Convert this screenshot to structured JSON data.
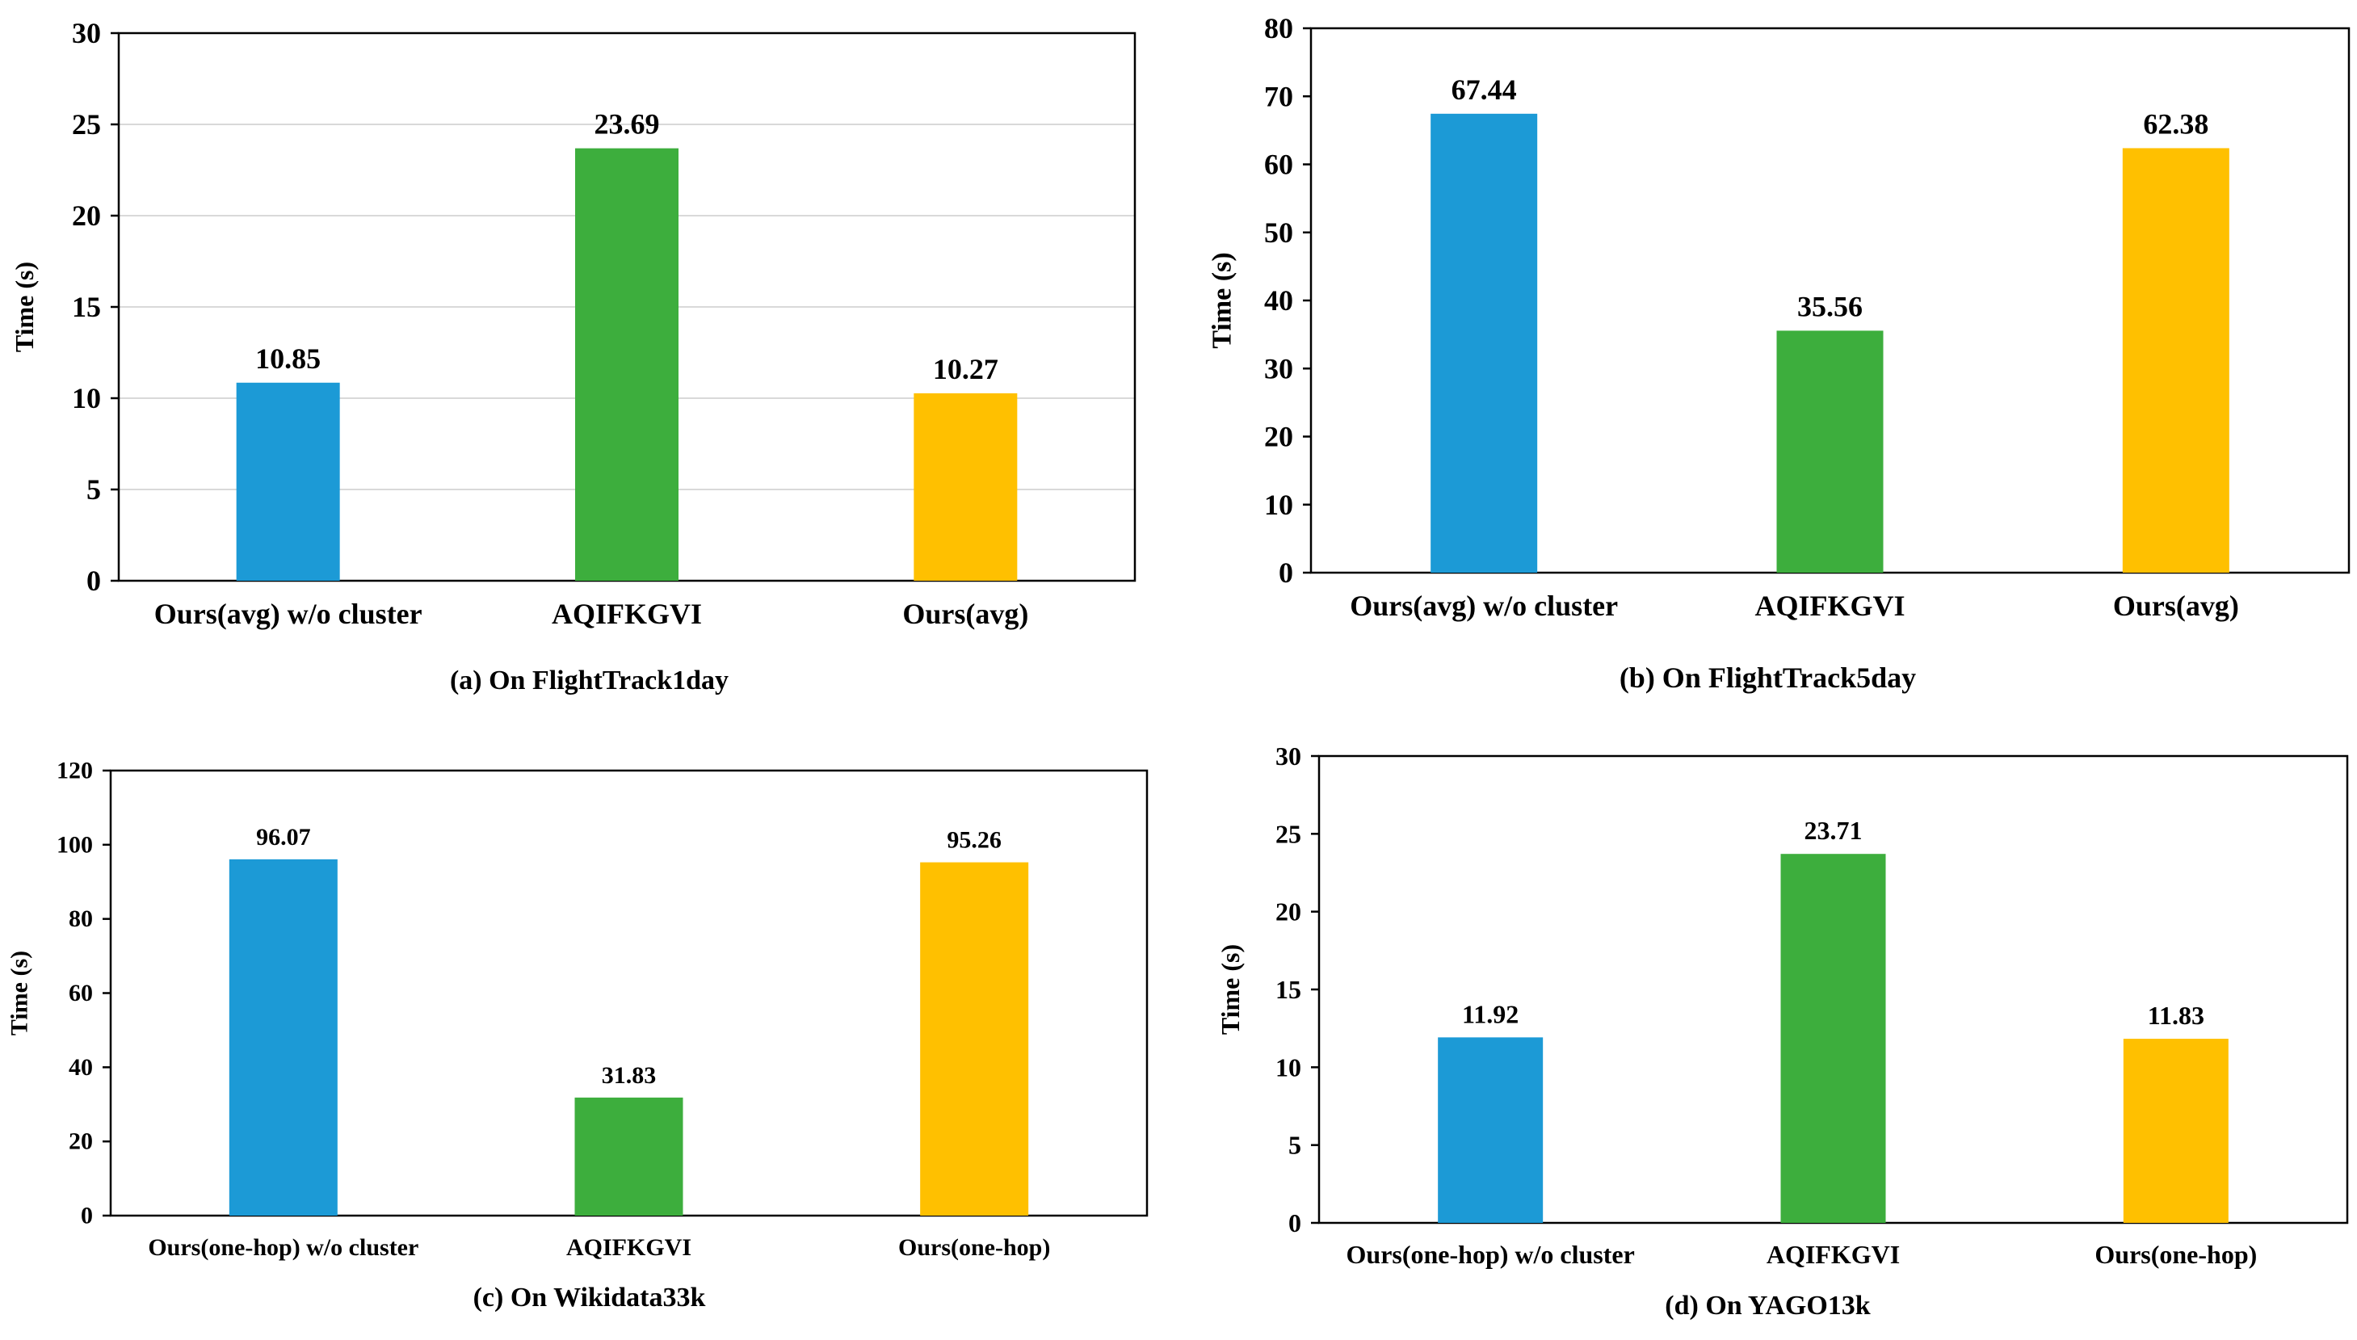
{
  "chart_data": [
    {
      "type": "bar",
      "caption": "(a) On FlightTrack1day",
      "ylabel": "Time (s)",
      "ylim": [
        0,
        30
      ],
      "yticks": [
        0,
        5,
        10,
        15,
        20,
        25,
        30
      ],
      "categories": [
        "Ours(avg) w/o cluster",
        "AQIFKGVI",
        "Ours(avg)"
      ],
      "values": [
        10.85,
        23.69,
        10.27
      ],
      "labels": [
        "10.85",
        "23.69",
        "10.27"
      ],
      "colors": [
        "#1C9AD6",
        "#3DAE3D",
        "#FFC000"
      ],
      "grid": true
    },
    {
      "type": "bar",
      "caption": "(b) On FlightTrack5day",
      "ylabel": "Time (s)",
      "ylim": [
        0,
        80
      ],
      "yticks": [
        0,
        10,
        20,
        30,
        40,
        50,
        60,
        70,
        80
      ],
      "categories": [
        "Ours(avg) w/o cluster",
        "AQIFKGVI",
        "Ours(avg)"
      ],
      "values": [
        67.44,
        35.56,
        62.38
      ],
      "labels": [
        "67.44",
        "35.56",
        "62.38"
      ],
      "colors": [
        "#1C9AD6",
        "#3DAE3D",
        "#FFC000"
      ],
      "grid": false
    },
    {
      "type": "bar",
      "caption": "(c) On Wikidata33k",
      "ylabel": "Time (s)",
      "ylim": [
        0,
        120
      ],
      "yticks": [
        0,
        20,
        40,
        60,
        80,
        100,
        120
      ],
      "categories": [
        "Ours(one-hop) w/o cluster",
        "AQIFKGVI",
        "Ours(one-hop)"
      ],
      "values": [
        96.07,
        31.83,
        95.26
      ],
      "labels": [
        "96.07",
        "31.83",
        "95.26"
      ],
      "colors": [
        "#1C9AD6",
        "#3DAE3D",
        "#FFC000"
      ],
      "grid": false
    },
    {
      "type": "bar",
      "caption": "(d) On YAGO13k",
      "ylabel": "Time (s)",
      "ylim": [
        0,
        30
      ],
      "yticks": [
        0,
        5,
        10,
        15,
        20,
        25,
        30
      ],
      "categories": [
        "Ours(one-hop) w/o cluster",
        "AQIFKGVI",
        "Ours(one-hop)"
      ],
      "values": [
        11.92,
        23.71,
        11.83
      ],
      "labels": [
        "11.92",
        "23.71",
        "11.83"
      ],
      "colors": [
        "#1C9AD6",
        "#3DAE3D",
        "#FFC000"
      ],
      "grid": false
    }
  ]
}
